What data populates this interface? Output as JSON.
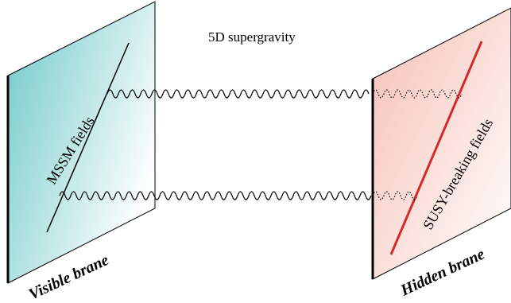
{
  "title": "5D supergravity",
  "visible_brane": {
    "label": "Visible brane",
    "field_label": "MSSM fields",
    "color_light": "#ffffff",
    "color_dark": "#6fc8c8",
    "line_color": "#000000"
  },
  "hidden_brane": {
    "label": "Hidden brane",
    "field_label": "SUSY-breaking fields",
    "color_light": "#ffffff",
    "color_dark": "#f7c0b6",
    "line_color": "#d42a2a"
  },
  "propagator": {
    "style": "wavy",
    "count": 2,
    "hidden_segment_style": "dotted"
  }
}
